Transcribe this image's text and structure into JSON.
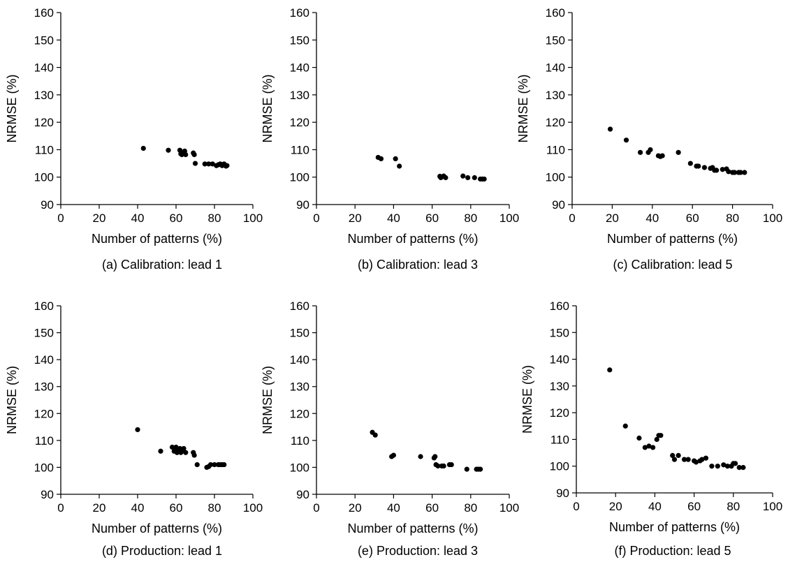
{
  "chart_data": [
    {
      "type": "scatter",
      "caption": "(a) Calibration: lead 1",
      "xlabel": "Number of patterns (%)",
      "ylabel": "NRMSE (%)",
      "xlim": [
        0,
        100
      ],
      "ylim": [
        90,
        160
      ],
      "xticks": [
        0,
        20,
        40,
        60,
        80,
        100
      ],
      "yticks": [
        90,
        100,
        110,
        120,
        130,
        140,
        150,
        160
      ],
      "grid": false,
      "points": [
        [
          43,
          110.5
        ],
        [
          56,
          109.8
        ],
        [
          62,
          109.8
        ],
        [
          62.5,
          108.5
        ],
        [
          63,
          108.2
        ],
        [
          64,
          108.8
        ],
        [
          64.5,
          109.5
        ],
        [
          65,
          108.2
        ],
        [
          69,
          108.8
        ],
        [
          69.5,
          108.2
        ],
        [
          70,
          105
        ],
        [
          75,
          104.8
        ],
        [
          77,
          104.8
        ],
        [
          79,
          104.8
        ],
        [
          81,
          104.2
        ],
        [
          82,
          104.5
        ],
        [
          83,
          104.8
        ],
        [
          84,
          104.2
        ],
        [
          85,
          104.8
        ],
        [
          86,
          104
        ],
        [
          86.5,
          104.2
        ]
      ]
    },
    {
      "type": "scatter",
      "caption": "(b) Calibration: lead 3",
      "xlabel": "Number of patterns (%)",
      "ylabel": "NRMSE (%)",
      "xlim": [
        0,
        100
      ],
      "ylim": [
        90,
        160
      ],
      "xticks": [
        0,
        20,
        40,
        60,
        80,
        100
      ],
      "yticks": [
        90,
        100,
        110,
        120,
        130,
        140,
        150,
        160
      ],
      "grid": false,
      "points": [
        [
          32,
          107.2
        ],
        [
          33.5,
          106.7
        ],
        [
          41,
          106.7
        ],
        [
          43,
          104
        ],
        [
          64,
          100.3
        ],
        [
          64.5,
          99.8
        ],
        [
          65,
          100.1
        ],
        [
          66,
          100.4
        ],
        [
          67,
          99.8
        ],
        [
          76,
          100.4
        ],
        [
          78.5,
          99.8
        ],
        [
          82,
          99.8
        ],
        [
          85,
          99.3
        ],
        [
          86,
          99.3
        ],
        [
          87,
          99.3
        ]
      ]
    },
    {
      "type": "scatter",
      "caption": "(c) Calibration: lead 5",
      "xlabel": "Number of patterns (%)",
      "ylabel": "NRMSE (%)",
      "xlim": [
        0,
        100
      ],
      "ylim": [
        90,
        160
      ],
      "xticks": [
        0,
        20,
        40,
        60,
        80,
        100
      ],
      "yticks": [
        90,
        100,
        110,
        120,
        130,
        140,
        150,
        160
      ],
      "grid": false,
      "points": [
        [
          19,
          117.5
        ],
        [
          27,
          113.5
        ],
        [
          34,
          109
        ],
        [
          38,
          109
        ],
        [
          39,
          110
        ],
        [
          43,
          107.8
        ],
        [
          44,
          107.5
        ],
        [
          45,
          107.8
        ],
        [
          53,
          109
        ],
        [
          59,
          105
        ],
        [
          62,
          104
        ],
        [
          63,
          104
        ],
        [
          66,
          103.5
        ],
        [
          69,
          103.2
        ],
        [
          70,
          103.5
        ],
        [
          71,
          102.5
        ],
        [
          72,
          102.5
        ],
        [
          75,
          102.8
        ],
        [
          77,
          103
        ],
        [
          78,
          102
        ],
        [
          80,
          101.7
        ],
        [
          81,
          101.7
        ],
        [
          83,
          101.7
        ],
        [
          84,
          101.7
        ],
        [
          86,
          101.7
        ]
      ]
    },
    {
      "type": "scatter",
      "caption": "(d) Production: lead 1",
      "xlabel": "Number of patterns (%)",
      "ylabel": "NRMSE (%)",
      "xlim": [
        0,
        100
      ],
      "ylim": [
        90,
        160
      ],
      "xticks": [
        0,
        20,
        40,
        60,
        80,
        100
      ],
      "yticks": [
        90,
        100,
        110,
        120,
        130,
        140,
        150,
        160
      ],
      "grid": false,
      "points": [
        [
          40,
          114
        ],
        [
          52,
          106
        ],
        [
          58,
          107.5
        ],
        [
          59,
          106
        ],
        [
          60,
          107.5
        ],
        [
          60.5,
          105.5
        ],
        [
          61,
          106.5
        ],
        [
          62,
          107
        ],
        [
          62.5,
          105.5
        ],
        [
          63,
          106.5
        ],
        [
          64,
          107
        ],
        [
          65,
          105.5
        ],
        [
          69,
          105.5
        ],
        [
          69.5,
          104.5
        ],
        [
          71,
          101
        ],
        [
          76,
          100
        ],
        [
          77,
          100.3
        ],
        [
          78,
          101
        ],
        [
          80,
          101
        ],
        [
          82,
          101
        ],
        [
          83,
          101
        ],
        [
          84,
          101
        ],
        [
          85,
          101
        ]
      ]
    },
    {
      "type": "scatter",
      "caption": "(e) Production: lead 3",
      "xlabel": "Number of patterns (%)",
      "ylabel": "NRMSE (%)",
      "xlim": [
        0,
        100
      ],
      "ylim": [
        90,
        160
      ],
      "xticks": [
        0,
        20,
        40,
        60,
        80,
        100
      ],
      "yticks": [
        90,
        100,
        110,
        120,
        130,
        140,
        150,
        160
      ],
      "grid": false,
      "points": [
        [
          29,
          113
        ],
        [
          30.5,
          112
        ],
        [
          39,
          104
        ],
        [
          40,
          104.5
        ],
        [
          54,
          104
        ],
        [
          61,
          103.5
        ],
        [
          61.5,
          104
        ],
        [
          62,
          101
        ],
        [
          63,
          100.5
        ],
        [
          65,
          100.5
        ],
        [
          66,
          100.5
        ],
        [
          69,
          101
        ],
        [
          70,
          101
        ],
        [
          78,
          99.3
        ],
        [
          83,
          99.3
        ],
        [
          84,
          99.3
        ],
        [
          85,
          99.3
        ]
      ]
    },
    {
      "type": "scatter",
      "caption": "(f) Production: lead 5",
      "xlabel": "Number of patterns (%)",
      "ylabel": "NRMSE (%)",
      "xlim": [
        0,
        100
      ],
      "ylim": [
        90,
        160
      ],
      "xticks": [
        0,
        20,
        40,
        60,
        80,
        100
      ],
      "yticks": [
        90,
        100,
        110,
        120,
        130,
        140,
        150,
        160
      ],
      "grid": false,
      "points": [
        [
          17,
          136
        ],
        [
          25,
          115
        ],
        [
          32,
          110.5
        ],
        [
          35,
          107
        ],
        [
          37,
          107.5
        ],
        [
          39,
          107
        ],
        [
          41,
          110
        ],
        [
          42,
          111.5
        ],
        [
          43,
          111.5
        ],
        [
          49,
          104
        ],
        [
          50,
          102.5
        ],
        [
          52,
          104
        ],
        [
          55,
          102.5
        ],
        [
          57,
          102.5
        ],
        [
          60,
          102
        ],
        [
          61,
          101.5
        ],
        [
          63,
          102
        ],
        [
          64,
          102.5
        ],
        [
          66,
          103
        ],
        [
          69,
          100
        ],
        [
          72,
          100
        ],
        [
          75,
          100.5
        ],
        [
          77,
          100
        ],
        [
          79,
          100
        ],
        [
          80,
          101
        ],
        [
          81,
          101
        ],
        [
          83,
          99.5
        ],
        [
          85,
          99.5
        ]
      ]
    }
  ]
}
